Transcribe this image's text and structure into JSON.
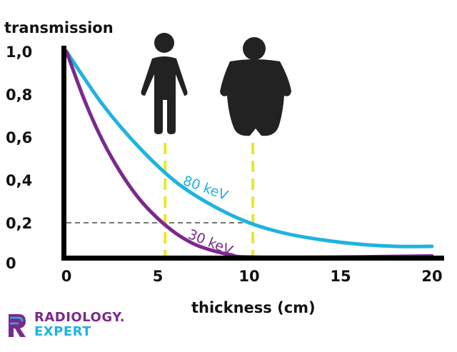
{
  "chart_data": {
    "type": "line",
    "title": "",
    "xlabel": "thickness (cm)",
    "ylabel": "transmission",
    "xlim": [
      0,
      20
    ],
    "ylim": [
      0,
      1.0
    ],
    "x_ticks": [
      "0",
      "5",
      "10",
      "15",
      "20"
    ],
    "y_ticks": [
      "0",
      "0,2",
      "0,4",
      "0,6",
      "0,8",
      "1,0"
    ],
    "grid": false,
    "series": [
      {
        "name": "80 keV",
        "color": "#1fb3e0",
        "x": [
          0,
          2,
          4,
          6,
          8,
          10,
          12,
          14,
          16,
          18,
          20
        ],
        "y": [
          1.0,
          0.75,
          0.55,
          0.39,
          0.28,
          0.2,
          0.15,
          0.12,
          0.1,
          0.09,
          0.09
        ]
      },
      {
        "name": "30 keV",
        "color": "#7b2a8c",
        "x": [
          0,
          1,
          2,
          3,
          4,
          5,
          6,
          7,
          8,
          9,
          10,
          15,
          20
        ],
        "y": [
          1.0,
          0.77,
          0.58,
          0.43,
          0.31,
          0.22,
          0.15,
          0.1,
          0.07,
          0.05,
          0.04,
          0.04,
          0.045
        ]
      }
    ],
    "reference_lines": {
      "horizontal": {
        "y": 0.2,
        "color": "#222222",
        "style": "dashed"
      },
      "vertical": [
        {
          "x": 5.4,
          "color": "#e8e82a",
          "style": "dashed",
          "marker": "thin-person-icon"
        },
        {
          "x": 10.2,
          "color": "#e8e82a",
          "style": "dashed",
          "marker": "large-person-icon"
        }
      ]
    }
  },
  "logo": {
    "line1": "RADIOLOGY.",
    "line2": "EXPERT",
    "color1": "#7b2a8c",
    "color2": "#1fb3e0"
  }
}
